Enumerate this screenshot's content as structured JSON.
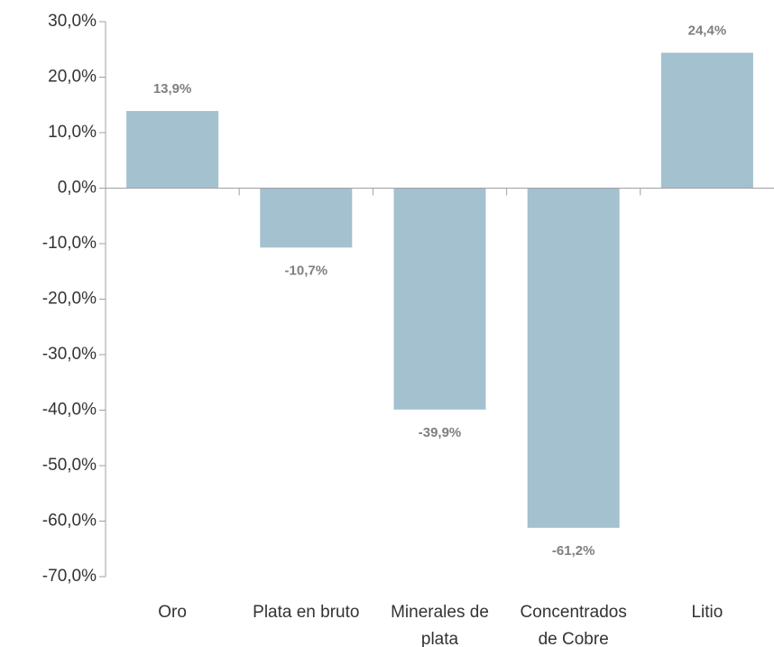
{
  "chart_data": {
    "type": "bar",
    "categories": [
      "Oro",
      "Plata en bruto",
      "Minerales de plata",
      "Concentrados de Cobre",
      "Litio"
    ],
    "values": [
      13.9,
      -10.7,
      -39.9,
      -61.2,
      24.4
    ],
    "value_labels": [
      "13,9%",
      "-10,7%",
      "-39,9%",
      "-61,2%",
      "24,4%"
    ],
    "color": "#a3c1cf",
    "ylim": [
      -70,
      30
    ],
    "yticks": [
      {
        "value": -70,
        "label": "-70,0%"
      },
      {
        "value": -60,
        "label": "-60,0%"
      },
      {
        "value": -50,
        "label": "-50,0%"
      },
      {
        "value": -40,
        "label": "-40,0%"
      },
      {
        "value": -30,
        "label": "-30,0%"
      },
      {
        "value": -20,
        "label": "-20,0%"
      },
      {
        "value": -10,
        "label": "-10,0%"
      },
      {
        "value": 0,
        "label": "0,0%"
      },
      {
        "value": 10,
        "label": "10,0%"
      },
      {
        "value": 20,
        "label": "20,0%"
      },
      {
        "value": 30,
        "label": "30,0%"
      }
    ],
    "grid": false
  }
}
